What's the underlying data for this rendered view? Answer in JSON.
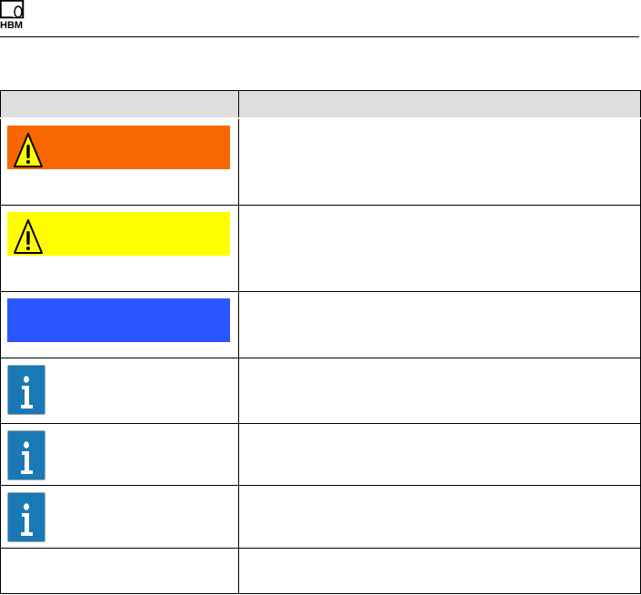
{
  "header": {
    "logo": "HBM"
  },
  "table": {
    "headers": [
      "",
      ""
    ],
    "rows": [
      {
        "symbol": "warning-triangle",
        "banner_color": "#f86600",
        "text": ""
      },
      {
        "symbol": "warning-triangle",
        "banner_color": "#ffff00",
        "text": ""
      },
      {
        "symbol": "none",
        "banner_color": "#2b55ff",
        "text": ""
      },
      {
        "symbol": "info-icon",
        "text": ""
      },
      {
        "symbol": "info-icon",
        "text": ""
      },
      {
        "symbol": "info-icon",
        "text": ""
      },
      {
        "symbol": "none",
        "text": ""
      }
    ]
  },
  "colors": {
    "info": "#1a78b4",
    "header_bg": "#dedede"
  }
}
